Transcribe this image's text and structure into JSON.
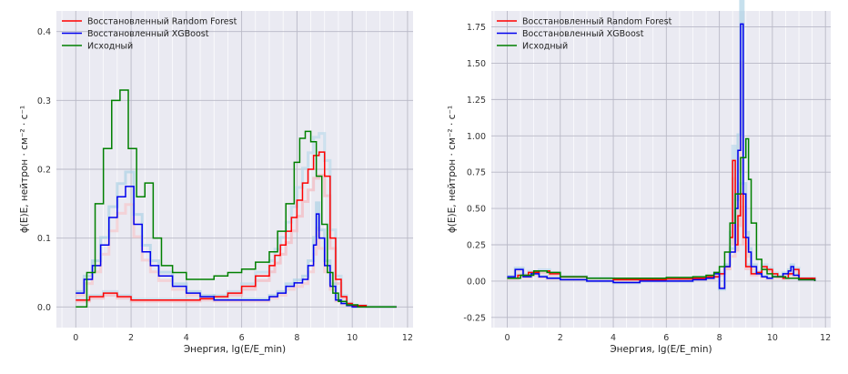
{
  "chart_data": [
    {
      "type": "line",
      "style": "step",
      "xlabel": "Энергия, lg(E/E_min)",
      "ylabel": "ϕ(E)E, нейтрон · см⁻² · с⁻¹",
      "xlim": [
        -0.7,
        12.2
      ],
      "ylim": [
        -0.03,
        0.43
      ],
      "xticks": [
        "0",
        "2",
        "4",
        "6",
        "8",
        "10",
        "12"
      ],
      "yticks": [
        "0.0",
        "0.1",
        "0.2",
        "0.3",
        "0.4"
      ],
      "grid": true,
      "legend_position": "top-left",
      "series": [
        {
          "name": "Восстановленный Random Forest",
          "color": "#ff0000",
          "x": [
            0,
            0.5,
            1,
            1.5,
            2,
            2.5,
            3,
            3.5,
            4,
            4.5,
            5,
            5.5,
            6,
            6.5,
            7,
            7.2,
            7.4,
            7.6,
            7.8,
            8,
            8.2,
            8.4,
            8.6,
            8.8,
            9,
            9.2,
            9.4,
            9.6,
            9.8,
            10,
            10.5,
            11,
            11.6
          ],
          "y": [
            0.01,
            0.015,
            0.02,
            0.015,
            0.01,
            0.01,
            0.01,
            0.01,
            0.01,
            0.012,
            0.015,
            0.02,
            0.03,
            0.045,
            0.06,
            0.075,
            0.09,
            0.11,
            0.13,
            0.155,
            0.18,
            0.2,
            0.22,
            0.225,
            0.19,
            0.1,
            0.04,
            0.015,
            0.005,
            0.002,
            0,
            0,
            0
          ]
        },
        {
          "name": "Восстановленный XGBoost",
          "color": "#0000ee",
          "x": [
            0,
            0.3,
            0.6,
            0.9,
            1.2,
            1.5,
            1.8,
            2.1,
            2.4,
            2.7,
            3,
            3.5,
            4,
            4.5,
            5,
            5.5,
            6,
            6.5,
            7,
            7.3,
            7.6,
            7.9,
            8.2,
            8.4,
            8.6,
            8.7,
            8.8,
            9,
            9.2,
            9.4,
            9.6,
            9.8,
            10,
            10.5,
            11.6
          ],
          "y": [
            0.02,
            0.04,
            0.06,
            0.09,
            0.13,
            0.16,
            0.175,
            0.12,
            0.08,
            0.06,
            0.045,
            0.03,
            0.02,
            0.015,
            0.01,
            0.01,
            0.01,
            0.01,
            0.015,
            0.02,
            0.03,
            0.035,
            0.04,
            0.06,
            0.09,
            0.135,
            0.1,
            0.06,
            0.03,
            0.01,
            0.005,
            0.002,
            0,
            0,
            0
          ]
        },
        {
          "name": "Исходный",
          "color": "#008000",
          "x": [
            0,
            0.4,
            0.7,
            1,
            1.3,
            1.6,
            1.9,
            2.2,
            2.5,
            2.8,
            3.1,
            3.5,
            4,
            4.5,
            5,
            5.5,
            6,
            6.5,
            7,
            7.3,
            7.6,
            7.9,
            8.1,
            8.3,
            8.5,
            8.7,
            8.9,
            9.1,
            9.3,
            9.5,
            9.8,
            10.2,
            11.6
          ],
          "y": [
            0,
            0.05,
            0.15,
            0.23,
            0.3,
            0.315,
            0.23,
            0.16,
            0.18,
            0.1,
            0.06,
            0.05,
            0.04,
            0.04,
            0.045,
            0.05,
            0.055,
            0.065,
            0.08,
            0.11,
            0.15,
            0.21,
            0.245,
            0.255,
            0.24,
            0.19,
            0.12,
            0.05,
            0.02,
            0.008,
            0.003,
            0,
            0
          ]
        }
      ]
    },
    {
      "type": "line",
      "style": "step",
      "xlabel": "Энергия, lg(E/E_min)",
      "ylabel": "ϕ(E)E, нейтрон · см⁻² · с⁻¹",
      "xlim": [
        -0.6,
        12.2
      ],
      "ylim": [
        -0.32,
        1.86
      ],
      "xticks": [
        "0",
        "2",
        "4",
        "6",
        "8",
        "10",
        "12"
      ],
      "yticks": [
        "-0.25",
        "0.00",
        "0.25",
        "0.50",
        "0.75",
        "1.00",
        "1.25",
        "1.50",
        "1.75"
      ],
      "grid": true,
      "legend_position": "top-left",
      "series": [
        {
          "name": "Восстановленный Random Forest",
          "color": "#ff0000",
          "x": [
            0,
            0.4,
            0.8,
            1.2,
            1.6,
            2,
            3,
            4,
            5,
            6,
            7,
            7.5,
            8,
            8.2,
            8.4,
            8.5,
            8.6,
            8.7,
            8.8,
            8.9,
            9,
            9.2,
            9.4,
            9.6,
            9.8,
            10,
            10.2,
            10.4,
            10.6,
            10.8,
            11,
            11.6
          ],
          "y": [
            0.02,
            0.04,
            0.06,
            0.07,
            0.05,
            0.03,
            0.02,
            0.01,
            0.01,
            0.015,
            0.02,
            0.03,
            0.05,
            0.1,
            0.3,
            0.83,
            0.25,
            0.45,
            0.6,
            0.3,
            0.1,
            0.05,
            0.06,
            0.1,
            0.08,
            0.05,
            0.03,
            0.02,
            0.05,
            0.08,
            0.02,
            0
          ]
        },
        {
          "name": "Восстановленный XGBoost",
          "color": "#0000ee",
          "x": [
            0,
            0.3,
            0.6,
            0.9,
            1.2,
            1.5,
            2,
            3,
            4,
            5,
            6,
            7,
            7.5,
            7.8,
            8,
            8.2,
            8.4,
            8.6,
            8.7,
            8.8,
            8.9,
            9,
            9.1,
            9.2,
            9.4,
            9.6,
            9.8,
            10,
            10.4,
            10.6,
            10.7,
            10.8,
            11,
            11.6
          ],
          "y": [
            0.03,
            0.08,
            0.03,
            0.05,
            0.03,
            0.02,
            0.01,
            0.0,
            -0.01,
            0.0,
            0.0,
            0.01,
            0.02,
            0.05,
            -0.05,
            0.1,
            0.2,
            0.5,
            0.9,
            1.77,
            0.6,
            0.3,
            0.2,
            0.1,
            0.05,
            0.03,
            0.02,
            0.03,
            0.05,
            0.07,
            0.1,
            0.04,
            0.01,
            0
          ]
        },
        {
          "name": "Исходный",
          "color": "#008000",
          "x": [
            0,
            0.5,
            1,
            1.5,
            2,
            3,
            4,
            5,
            6,
            7,
            7.5,
            7.8,
            8,
            8.2,
            8.4,
            8.6,
            8.8,
            9,
            9.1,
            9.2,
            9.4,
            9.6,
            9.8,
            10,
            10.5,
            11,
            11.6
          ],
          "y": [
            0.02,
            0.04,
            0.07,
            0.06,
            0.03,
            0.02,
            0.02,
            0.02,
            0.025,
            0.03,
            0.04,
            0.06,
            0.1,
            0.2,
            0.4,
            0.6,
            0.85,
            0.98,
            0.7,
            0.4,
            0.15,
            0.08,
            0.05,
            0.03,
            0.02,
            0.01,
            0
          ]
        }
      ]
    }
  ]
}
